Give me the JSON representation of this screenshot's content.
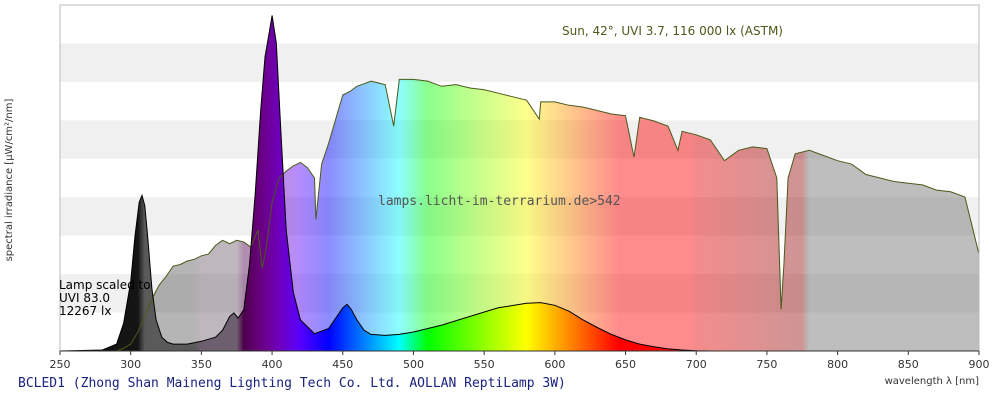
{
  "chart_data": {
    "type": "area",
    "xlabel": "wavelength λ [nm]",
    "ylabel": "spectral irradiance [µW/cm²/nm]",
    "xlim": [
      250,
      900
    ],
    "x_ticks": [
      250,
      300,
      350,
      400,
      450,
      500,
      550,
      600,
      650,
      700,
      750,
      800,
      850,
      900
    ],
    "grid": "horizontal bands",
    "series": [
      {
        "name": "Sun, 42°, UVI 3.7, 116 000 lx (ASTM)",
        "color": "#4a5a1a",
        "x": [
          250,
          290,
          295,
          300,
          305,
          310,
          315,
          320,
          325,
          330,
          335,
          340,
          345,
          350,
          355,
          360,
          365,
          370,
          375,
          380,
          385,
          390,
          393,
          396,
          400,
          405,
          410,
          415,
          420,
          425,
          430,
          431,
          435,
          440,
          445,
          450,
          455,
          460,
          470,
          480,
          486,
          490,
          500,
          510,
          520,
          530,
          540,
          550,
          560,
          570,
          580,
          589,
          590,
          600,
          610,
          620,
          630,
          640,
          650,
          656,
          660,
          670,
          680,
          687,
          690,
          700,
          710,
          720,
          730,
          740,
          750,
          757,
          760,
          762,
          765,
          770,
          780,
          790,
          800,
          810,
          820,
          830,
          840,
          850,
          860,
          870,
          880,
          890,
          900
        ],
        "values": [
          0,
          0,
          0.8,
          2.0,
          5.5,
          10.0,
          15.0,
          19.0,
          21.5,
          24.5,
          25.0,
          26.0,
          26.5,
          27.5,
          28.0,
          30.5,
          32.0,
          31.0,
          32.0,
          31.5,
          30.0,
          35.0,
          24.0,
          30.0,
          43.0,
          50.0,
          52.0,
          53.5,
          54.5,
          53.0,
          50.0,
          38.0,
          54.0,
          60.0,
          67.0,
          74.0,
          75.0,
          76.5,
          78.0,
          77.0,
          65.0,
          78.5,
          78.5,
          78.0,
          76.5,
          77.0,
          76.0,
          75.5,
          74.5,
          73.5,
          72.5,
          67.0,
          72.0,
          72.0,
          71.0,
          70.5,
          69.5,
          68.5,
          68.0,
          56.0,
          67.5,
          66.5,
          65.0,
          58.0,
          63.5,
          62.5,
          61.0,
          55.0,
          58.0,
          59.0,
          58.5,
          50.0,
          12.0,
          25.0,
          50.0,
          57.0,
          58.0,
          56.5,
          55.0,
          54.0,
          51.0,
          50.0,
          49.0,
          48.5,
          48.0,
          46.5,
          46.0,
          44.5,
          28.0
        ]
      },
      {
        "name": "BCLED1",
        "x": [
          250,
          280,
          290,
          295,
          300,
          303,
          306,
          308,
          310,
          312,
          315,
          318,
          322,
          326,
          330,
          340,
          350,
          360,
          365,
          370,
          373,
          376,
          380,
          384,
          388,
          392,
          395,
          398,
          400,
          403,
          406,
          410,
          415,
          420,
          430,
          440,
          445,
          450,
          453,
          456,
          460,
          465,
          470,
          480,
          490,
          500,
          520,
          540,
          560,
          580,
          590,
          600,
          610,
          620,
          630,
          640,
          650,
          660,
          670,
          680,
          690,
          700,
          710,
          720,
          730,
          740,
          750,
          760,
          770,
          780
        ],
        "values": [
          0,
          0.3,
          2.0,
          8.0,
          20.0,
          33.0,
          43.0,
          45.0,
          42.0,
          33.0,
          18.0,
          9.0,
          4.0,
          2.5,
          2.0,
          2.0,
          2.8,
          4.0,
          6.0,
          10.0,
          11.0,
          9.5,
          12.0,
          25.0,
          45.0,
          70.0,
          85.0,
          92.0,
          97.0,
          89.0,
          65.0,
          35.0,
          17.0,
          9.0,
          5.0,
          6.5,
          9.5,
          12.5,
          13.5,
          12.0,
          9.0,
          6.0,
          4.8,
          4.5,
          4.8,
          5.5,
          7.5,
          10.0,
          12.5,
          13.8,
          14.0,
          13.2,
          11.5,
          9.0,
          6.8,
          4.8,
          3.2,
          2.0,
          1.2,
          0.6,
          0.3,
          0.1,
          0,
          0,
          0,
          0,
          0,
          0,
          0,
          0
        ]
      }
    ],
    "annotations": {
      "sun": "Sun, 42°, UVI 3.7, 116 000 lx (ASTM)",
      "watermark": "lamps.licht-im-terrarium.de>542",
      "lamp_scaled": [
        "Lamp scaled to",
        "UVI 83.0",
        "12267 lx"
      ]
    },
    "footer": "BCLED1 (Zhong Shan Maineng Lighting Tech Co. Ltd. AOLLAN ReptiLamp 3W)"
  }
}
